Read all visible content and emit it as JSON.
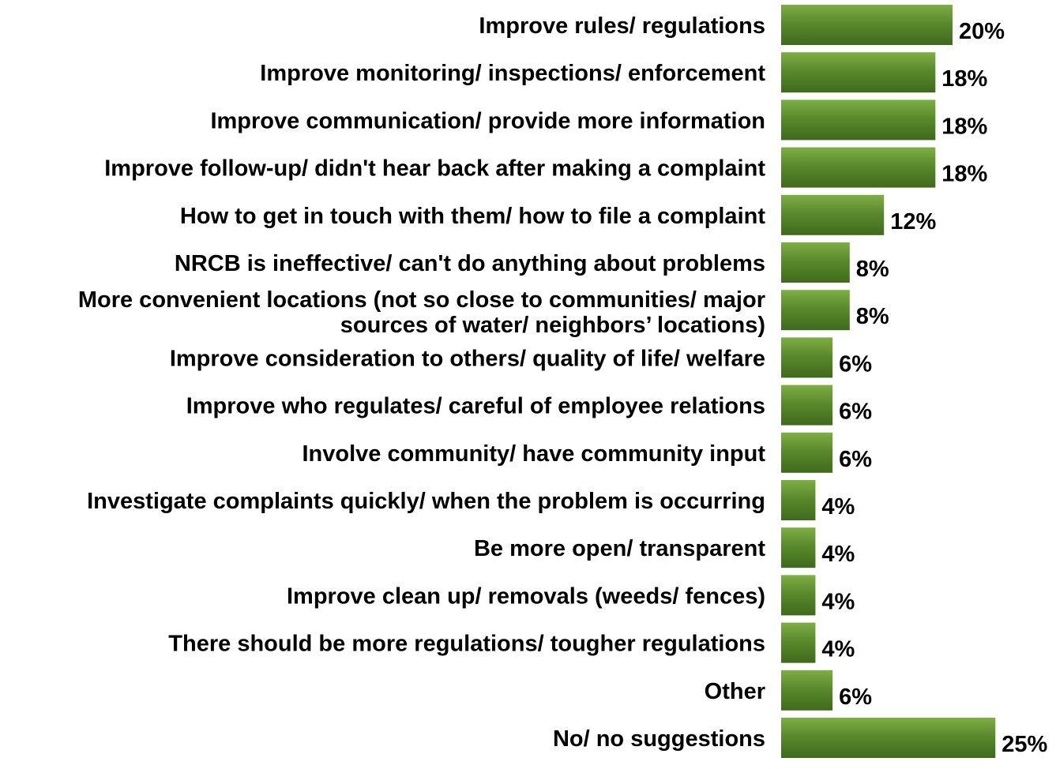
{
  "chart_data": {
    "type": "bar",
    "orientation": "horizontal",
    "title": "",
    "xlabel": "",
    "ylabel": "",
    "xlim": [
      0,
      25
    ],
    "grid": false,
    "legend": "none",
    "bar_color": "#5a8a2c",
    "bar_color_light": "#7fae45",
    "bar_color_dark": "#3f6a1c",
    "categories": [
      [
        "Improve rules/ regulations"
      ],
      [
        "Improve monitoring/ inspections/ enforcement"
      ],
      [
        "Improve communication/ provide more information"
      ],
      [
        "Improve follow-up/ didn't hear back after making a complaint"
      ],
      [
        "How to get in touch with them/ how to file a complaint"
      ],
      [
        "NRCB is ineffective/ can't do anything about problems"
      ],
      [
        "More convenient locations (not so close to communities/ major",
        "sources of water/ neighbors’ locations)"
      ],
      [
        "Improve consideration to others/ quality of life/ welfare"
      ],
      [
        "Improve who regulates/ careful of employee relations"
      ],
      [
        "Involve community/ have community input"
      ],
      [
        "Investigate complaints quickly/ when the problem is occurring"
      ],
      [
        "Be more open/ transparent"
      ],
      [
        "Improve clean up/ removals (weeds/ fences)"
      ],
      [
        "There should be more regulations/ tougher regulations"
      ],
      [
        "Other"
      ],
      [
        "No/ no suggestions"
      ]
    ],
    "values": [
      20,
      18,
      18,
      18,
      12,
      8,
      8,
      6,
      6,
      6,
      4,
      4,
      4,
      4,
      6,
      25
    ],
    "value_labels": [
      "20%",
      "18%",
      "18%",
      "18%",
      "12%",
      "8%",
      "8%",
      "6%",
      "6%",
      "6%",
      "4%",
      "4%",
      "4%",
      "4%",
      "6%",
      "25%"
    ]
  }
}
